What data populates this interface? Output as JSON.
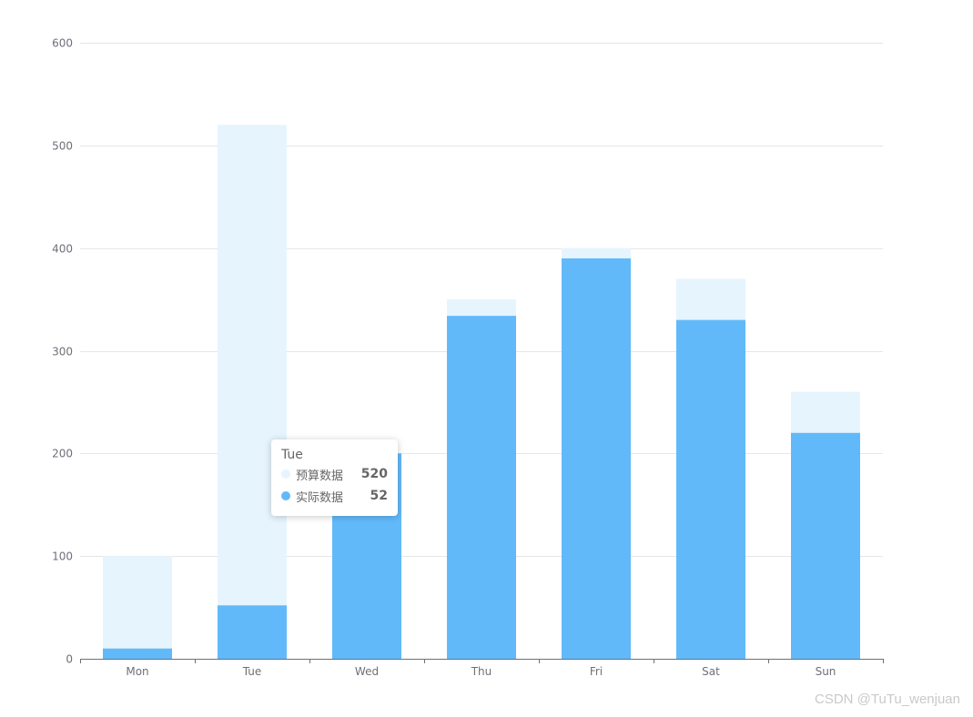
{
  "chart_data": {
    "type": "bar",
    "categories": [
      "Mon",
      "Tue",
      "Wed",
      "Thu",
      "Fri",
      "Sat",
      "Sun"
    ],
    "series": [
      {
        "name": "预算数据",
        "values": [
          100,
          520,
          200,
          350,
          400,
          370,
          260
        ],
        "color": "#e6f4fd"
      },
      {
        "name": "实际数据",
        "values": [
          10,
          52,
          200,
          334,
          390,
          330,
          220
        ],
        "color": "#62b9f9"
      }
    ],
    "ylim": [
      0,
      600
    ],
    "yticks": [
      0,
      100,
      200,
      300,
      400,
      500,
      600
    ],
    "grid": true,
    "title": "",
    "xlabel": "",
    "ylabel": ""
  },
  "tooltip": {
    "title": "Tue",
    "rows": [
      {
        "name": "预算数据",
        "value": "520",
        "color": "#e6f4fd"
      },
      {
        "name": "实际数据",
        "value": "52",
        "color": "#62b9f9"
      }
    ]
  },
  "watermark": "CSDN @TuTu_wenjuan"
}
